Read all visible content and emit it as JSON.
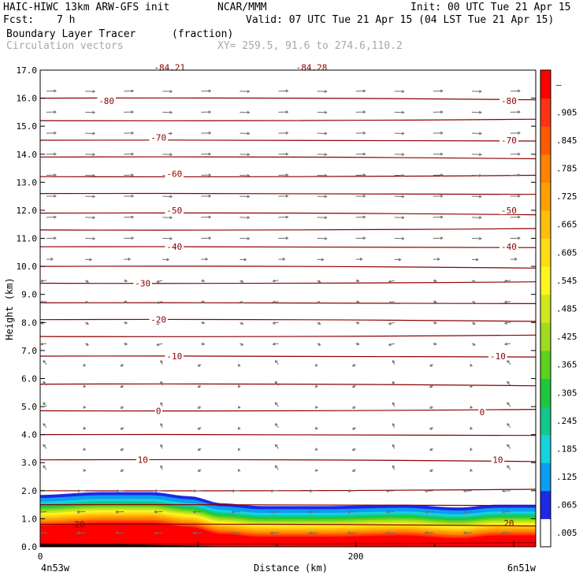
{
  "header": {
    "model": "HAIC-HIWC 13km ARW-GFS init",
    "source": "NCAR/MMM",
    "init": "Init: 00 UTC Tue 21 Apr 15",
    "fcst_label": "Fcst:",
    "fcst_value": "7 h",
    "valid": "Valid: 07 UTC Tue 21 Apr 15 (04 LST Tue 21 Apr 15)",
    "field": "Boundary Layer Tracer",
    "field_units": "(fraction)",
    "overlay": "Circulation vectors",
    "xy": "XY= 259.5, 91.6 to 274.6,110.2"
  },
  "chart_data": {
    "type": "heatmap",
    "ylabel": "Height (km)",
    "xlabel": "Distance (km)",
    "xlim": [
      0,
      314
    ],
    "ylim": [
      0,
      17
    ],
    "x_ticks": [
      0,
      200
    ],
    "x_tick_labels": [
      "0",
      "200"
    ],
    "x_end_labels": [
      "4n53w",
      "6n51w"
    ],
    "y_ticks": [
      0,
      1,
      2,
      3,
      4,
      5,
      6,
      7,
      8,
      9,
      10,
      11,
      12,
      13,
      14,
      15,
      16,
      17
    ],
    "y_tick_labels": [
      "0.0",
      "1.0",
      "2.0",
      "3.0",
      "4.0",
      "5.0",
      "6.0",
      "7.0",
      "8.0",
      "9.0",
      "10.0",
      "11.0",
      "12.0",
      "13.0",
      "14.0",
      "15.0",
      "16.0",
      "17.0"
    ],
    "colorbar": {
      "tick_labels": [
        ".005",
        ".065",
        ".125",
        ".185",
        ".245",
        ".305",
        ".365",
        ".425",
        ".485",
        ".545",
        ".605",
        ".665",
        ".725",
        ".785",
        ".845",
        ".905",
        "–"
      ],
      "colors": [
        "#ffffff",
        "#1e28e6",
        "#0a9ef0",
        "#16d2dc",
        "#12c88c",
        "#1ec83c",
        "#5ad21e",
        "#a0dc1e",
        "#d2e61e",
        "#fff51e",
        "#ffdc14",
        "#ffbe0a",
        "#ffa000",
        "#ff8200",
        "#ff5a00",
        "#ff3214",
        "#ff0000"
      ]
    },
    "boundary_layer_top_km": [
      {
        "x": 0,
        "y": 1.85
      },
      {
        "x": 40,
        "y": 1.95
      },
      {
        "x": 70,
        "y": 1.95
      },
      {
        "x": 95,
        "y": 1.8
      },
      {
        "x": 115,
        "y": 1.55
      },
      {
        "x": 140,
        "y": 1.45
      },
      {
        "x": 180,
        "y": 1.45
      },
      {
        "x": 230,
        "y": 1.5
      },
      {
        "x": 265,
        "y": 1.4
      },
      {
        "x": 290,
        "y": 1.5
      },
      {
        "x": 314,
        "y": 1.5
      }
    ],
    "contour_labels": [
      {
        "label": "-84.21",
        "x": 82,
        "y": 17.1
      },
      {
        "label": "-84.28",
        "x": 172,
        "y": 17.1
      },
      {
        "label": "-80",
        "x": 42,
        "y": 15.9
      },
      {
        "label": "-80",
        "x": 297,
        "y": 15.9
      },
      {
        "label": "-70",
        "x": 75,
        "y": 14.6
      },
      {
        "label": "-70",
        "x": 297,
        "y": 14.5
      },
      {
        "label": "-60",
        "x": 85,
        "y": 13.3
      },
      {
        "label": "-50",
        "x": 85,
        "y": 12.0
      },
      {
        "label": "-50",
        "x": 297,
        "y": 12.0
      },
      {
        "label": "-40",
        "x": 85,
        "y": 10.7
      },
      {
        "label": "-40",
        "x": 297,
        "y": 10.7
      },
      {
        "label": "-30",
        "x": 65,
        "y": 9.4
      },
      {
        "label": "-20",
        "x": 75,
        "y": 8.1
      },
      {
        "label": "-10",
        "x": 85,
        "y": 6.8
      },
      {
        "label": "-10",
        "x": 290,
        "y": 6.8
      },
      {
        "label": "0",
        "x": 75,
        "y": 4.85
      },
      {
        "label": "0",
        "x": 280,
        "y": 4.8
      },
      {
        "label": "10",
        "x": 65,
        "y": 3.1
      },
      {
        "label": "10",
        "x": 290,
        "y": 3.1
      },
      {
        "label": "20",
        "x": 25,
        "y": 0.8
      },
      {
        "label": "20",
        "x": 297,
        "y": 0.85
      }
    ],
    "isotherm_heights_km": [
      16.0,
      15.2,
      14.5,
      13.9,
      13.2,
      12.6,
      11.9,
      11.3,
      10.7,
      10.0,
      9.4,
      8.7,
      8.1,
      7.5,
      6.8,
      5.8,
      4.85,
      4.0,
      3.1,
      2.0,
      1.5,
      0.8,
      0.1
    ]
  }
}
